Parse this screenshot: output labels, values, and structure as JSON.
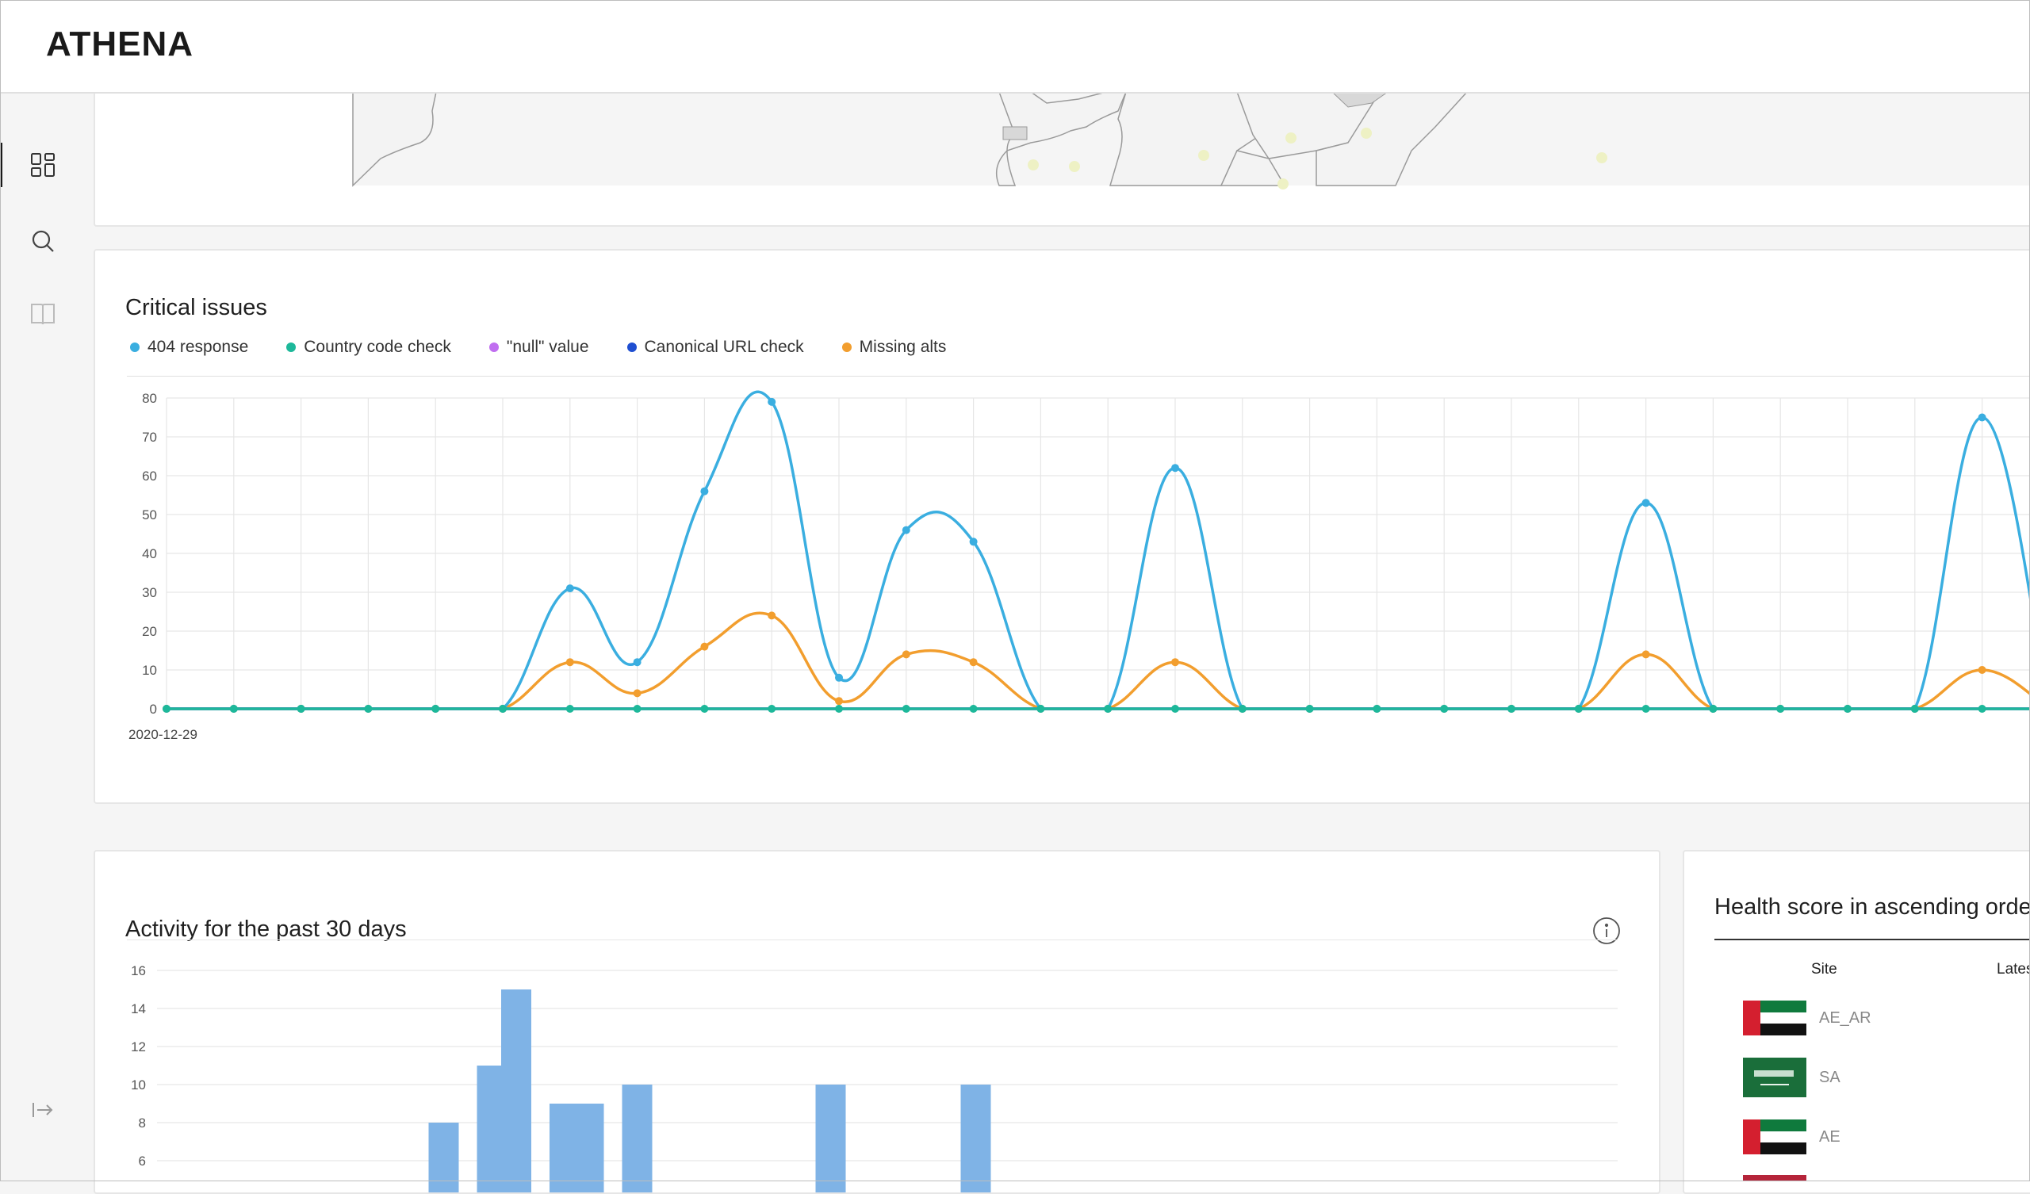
{
  "app": {
    "logo_text": "ATHENA"
  },
  "sidebar": {
    "items": [
      {
        "name": "dashboard-icon",
        "active": true
      },
      {
        "name": "search-icon",
        "active": false
      },
      {
        "name": "book-icon",
        "active": false
      }
    ],
    "collapse_icon": "collapse-icon"
  },
  "critical_issues": {
    "title": "Critical issues",
    "legend": [
      {
        "label": "404 response",
        "color": "#3aaee0"
      },
      {
        "label": "Country code check",
        "color": "#1db89a"
      },
      {
        "label": "\"null\" value",
        "color": "#c06ef0"
      },
      {
        "label": "Canonical URL check",
        "color": "#1f4fd1"
      },
      {
        "label": "Missing alts",
        "color": "#f29e2e"
      }
    ]
  },
  "activity": {
    "title": "Activity for the past 30 days",
    "info_icon": "info-icon"
  },
  "health": {
    "title": "Health score in ascending orde",
    "columns": [
      "Site",
      "Lates"
    ],
    "rows": [
      {
        "site": "AE_AR",
        "flag": "uae"
      },
      {
        "site": "SA",
        "flag": "saudi"
      },
      {
        "site": "AE",
        "flag": "uae"
      }
    ]
  },
  "chart_data": [
    {
      "type": "line",
      "title": "Critical issues",
      "x_first_label": "2020-12-29",
      "ylim": [
        0,
        80
      ],
      "yticks": [
        0,
        10,
        20,
        30,
        40,
        50,
        60,
        70,
        80
      ],
      "grid": true,
      "legend_placement": "top-left",
      "series": [
        {
          "name": "404 response",
          "color": "#3aaee0",
          "values": [
            0,
            0,
            0,
            0,
            0,
            0,
            31,
            12,
            56,
            79,
            8,
            46,
            43,
            0,
            0,
            62,
            0,
            0,
            0,
            0,
            0,
            0,
            53,
            0,
            0,
            0,
            0,
            75,
            0
          ]
        },
        {
          "name": "Missing alts",
          "color": "#f29e2e",
          "values": [
            0,
            0,
            0,
            0,
            0,
            0,
            12,
            4,
            16,
            24,
            2,
            14,
            12,
            0,
            0,
            12,
            0,
            0,
            0,
            0,
            0,
            0,
            14,
            0,
            0,
            0,
            0,
            10,
            0
          ]
        },
        {
          "name": "Country code check",
          "color": "#1db89a",
          "values": [
            0,
            0,
            0,
            0,
            0,
            0,
            0,
            0,
            0,
            0,
            0,
            0,
            0,
            0,
            0,
            0,
            0,
            0,
            0,
            0,
            0,
            0,
            0,
            0,
            0,
            0,
            0,
            0,
            0
          ]
        },
        {
          "name": "\"null\" value",
          "color": "#c06ef0",
          "values": [
            0,
            0,
            0,
            0,
            0,
            0,
            0,
            0,
            0,
            0,
            0,
            0,
            0,
            0,
            0,
            0,
            0,
            0,
            0,
            0,
            0,
            0,
            0,
            0,
            0,
            0,
            0,
            0,
            0
          ]
        },
        {
          "name": "Canonical URL check",
          "color": "#1f4fd1",
          "values": [
            0,
            0,
            0,
            0,
            0,
            0,
            0,
            0,
            0,
            0,
            0,
            0,
            0,
            0,
            0,
            0,
            0,
            0,
            0,
            0,
            0,
            0,
            0,
            0,
            0,
            0,
            0,
            0,
            0
          ]
        }
      ]
    },
    {
      "type": "bar",
      "title": "Activity for the past 30 days",
      "yticks": [
        6,
        8,
        10,
        12,
        14,
        16
      ],
      "ylim": [
        0,
        16
      ],
      "grid": true,
      "color": "#7fb3e6",
      "values": [
        0,
        0,
        0,
        0,
        0,
        0,
        0,
        0,
        0,
        0,
        0,
        8,
        0,
        11,
        15,
        0,
        9,
        9,
        0,
        10,
        0,
        0,
        0,
        0,
        0,
        0,
        0,
        10,
        0,
        0,
        0,
        0,
        0,
        10,
        0
      ]
    }
  ]
}
